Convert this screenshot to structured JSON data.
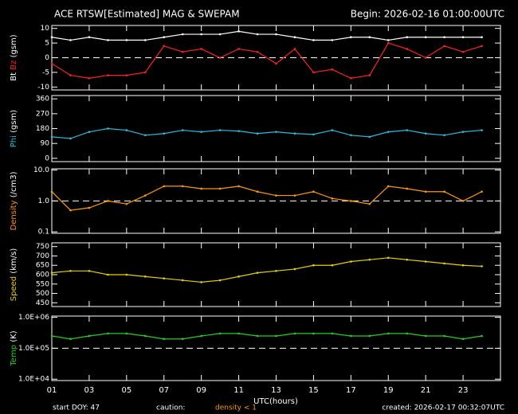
{
  "header": {
    "title": "ACE RTSW[Estimated] MAG & SWEPAM",
    "begin": "Begin: 2026-02-16 01:00:00UTC"
  },
  "footer": {
    "start_doy": "start DOY:  47",
    "caution": "caution:",
    "caution_note": "density < 1",
    "created": "created: 2026-02-17 00:32:07UTC"
  },
  "x_axis": {
    "xlabel": "UTC(hours)",
    "xlim": [
      1,
      25
    ],
    "xticks": [
      {
        "value": 1,
        "label": "01"
      },
      {
        "value": 3,
        "label": "03"
      },
      {
        "value": 5,
        "label": "05"
      },
      {
        "value": 7,
        "label": "07"
      },
      {
        "value": 9,
        "label": "09"
      },
      {
        "value": 11,
        "label": "11"
      },
      {
        "value": 13,
        "label": "13"
      },
      {
        "value": 15,
        "label": "15"
      },
      {
        "value": 17,
        "label": "17"
      },
      {
        "value": 19,
        "label": "19"
      },
      {
        "value": 21,
        "label": "21"
      },
      {
        "value": 23,
        "label": "23"
      }
    ]
  },
  "chart_data": [
    {
      "type": "line",
      "ylabel": "(gsm)",
      "ylim": [
        -11,
        11
      ],
      "yticks": [
        -10,
        -5,
        0,
        5,
        10
      ],
      "reference_line": 0,
      "log": false,
      "x": [
        1,
        2,
        3,
        4,
        5,
        6,
        7,
        8,
        9,
        10,
        11,
        12,
        13,
        14,
        15,
        16,
        17,
        18,
        19,
        20,
        21,
        22,
        23,
        24
      ],
      "series": [
        {
          "name": "Bt",
          "color": "#ffffff",
          "values": [
            7,
            6,
            7,
            6,
            6,
            6,
            7,
            8,
            8,
            8,
            9,
            8,
            8,
            7,
            6,
            6,
            7,
            7,
            6,
            7,
            7,
            7,
            7,
            7
          ]
        },
        {
          "name": "Bz",
          "color": "#ff2020",
          "values": [
            -2,
            -6,
            -7,
            -6,
            -6,
            -5,
            4,
            2,
            3,
            0,
            3,
            2,
            -2,
            3,
            -5,
            -4,
            -7,
            -6,
            5,
            3,
            0,
            4,
            2,
            4
          ]
        }
      ]
    },
    {
      "type": "line",
      "ylabel": "(gsm)",
      "ylim": [
        -20,
        380
      ],
      "yticks": [
        0,
        90,
        180,
        270,
        360
      ],
      "log": false,
      "x": [
        1,
        2,
        3,
        4,
        5,
        6,
        7,
        8,
        9,
        10,
        11,
        12,
        13,
        14,
        15,
        16,
        17,
        18,
        19,
        20,
        21,
        22,
        23,
        24
      ],
      "series": [
        {
          "name": "Phi",
          "color": "#20c0e0",
          "values": [
            130,
            120,
            160,
            180,
            170,
            140,
            150,
            170,
            160,
            170,
            165,
            150,
            160,
            150,
            145,
            170,
            140,
            130,
            160,
            170,
            150,
            140,
            160,
            170
          ]
        }
      ]
    },
    {
      "type": "line",
      "ylabel": "(/cm3)",
      "ylim": [
        0.09,
        11
      ],
      "log": true,
      "reference_line": 1,
      "yticks": [
        {
          "value": 0.1,
          "label": "0.1"
        },
        {
          "value": 1,
          "label": "1.0"
        },
        {
          "value": 10,
          "label": "10.0"
        }
      ],
      "x": [
        1,
        2,
        3,
        4,
        5,
        6,
        7,
        8,
        9,
        10,
        11,
        12,
        13,
        14,
        15,
        16,
        17,
        18,
        19,
        20,
        21,
        22,
        23,
        24
      ],
      "series": [
        {
          "name": "Density",
          "color": "#ff9900",
          "values": [
            2,
            0.5,
            0.6,
            1,
            0.8,
            1.5,
            3,
            3,
            2.5,
            2.5,
            3,
            2,
            1.5,
            1.5,
            2,
            1.2,
            1,
            0.8,
            3,
            2.5,
            2,
            2,
            1,
            2
          ]
        }
      ]
    },
    {
      "type": "line",
      "ylabel": "(km/s)",
      "ylim": [
        430,
        770
      ],
      "yticks": [
        450,
        500,
        550,
        600,
        650,
        700,
        750
      ],
      "log": false,
      "x": [
        1,
        2,
        3,
        4,
        5,
        6,
        7,
        8,
        9,
        10,
        11,
        12,
        13,
        14,
        15,
        16,
        17,
        18,
        19,
        20,
        21,
        22,
        23,
        24
      ],
      "series": [
        {
          "name": "Speed",
          "color": "#e8d000",
          "values": [
            610,
            620,
            620,
            600,
            600,
            590,
            580,
            570,
            560,
            570,
            590,
            610,
            620,
            630,
            650,
            650,
            670,
            680,
            690,
            680,
            670,
            660,
            650,
            645
          ]
        }
      ]
    },
    {
      "type": "line",
      "ylabel": "(K)",
      "ylim": [
        9000,
        1100000
      ],
      "log": true,
      "reference_line": 100000,
      "yticks": [
        {
          "value": 10000,
          "label": "1.0E+04"
        },
        {
          "value": 100000,
          "label": "1.0E+05"
        },
        {
          "value": 1000000,
          "label": "1.0E+06"
        }
      ],
      "x": [
        1,
        2,
        3,
        4,
        5,
        6,
        7,
        8,
        9,
        10,
        11,
        12,
        13,
        14,
        15,
        16,
        17,
        18,
        19,
        20,
        21,
        22,
        23,
        24
      ],
      "series": [
        {
          "name": "Temp",
          "color": "#20d020",
          "values": [
            250000,
            200000,
            250000,
            300000,
            300000,
            250000,
            200000,
            200000,
            250000,
            300000,
            300000,
            250000,
            250000,
            300000,
            300000,
            300000,
            250000,
            250000,
            300000,
            300000,
            250000,
            250000,
            200000,
            250000
          ]
        }
      ]
    }
  ]
}
